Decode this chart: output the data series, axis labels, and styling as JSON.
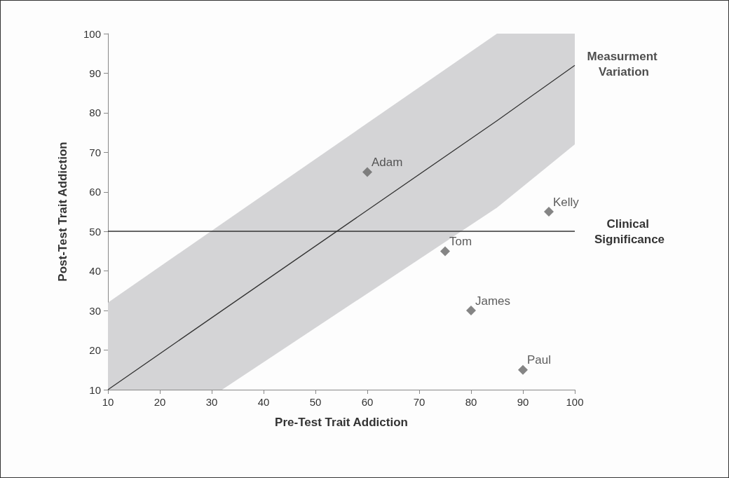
{
  "chart_data": {
    "type": "scatter",
    "xlabel": "Pre-Test Trait Addiction",
    "ylabel": "Post-Test Trait Addiction",
    "xlim": [
      10,
      100
    ],
    "xticks": [
      10,
      20,
      30,
      40,
      50,
      60,
      70,
      80,
      90,
      100
    ],
    "ylim": [
      10,
      100
    ],
    "yticks": [
      10,
      20,
      30,
      40,
      50,
      60,
      70,
      80,
      90,
      100
    ],
    "grid": false,
    "series": [
      {
        "type": "line",
        "marker": "none",
        "color": "#333333",
        "x": [
          10,
          32,
          85,
          100
        ],
        "values": [
          10,
          30,
          78,
          92
        ],
        "lower": [
          10,
          10,
          56,
          72
        ],
        "upper": [
          32,
          52,
          100,
          100
        ]
      },
      {
        "marker": "diamond",
        "color": "#666666",
        "x": [
          60,
          95,
          75,
          80,
          90
        ],
        "values": [
          65,
          55,
          45,
          30,
          15
        ]
      }
    ],
    "ref_lines": [
      {
        "axis": "y",
        "value": 50,
        "label": "Clinical Significance",
        "color": "#333333"
      }
    ],
    "annotations": [
      {
        "text": "Measurment Variation",
        "x": 100,
        "y": 92
      },
      {
        "text": "Adam",
        "x": 60,
        "y": 65
      },
      {
        "text": "Kelly",
        "x": 95,
        "y": 55
      },
      {
        "text": "Tom",
        "x": 75,
        "y": 45
      },
      {
        "text": "James",
        "x": 80,
        "y": 30
      },
      {
        "text": "Paul",
        "x": 90,
        "y": 15
      }
    ]
  }
}
